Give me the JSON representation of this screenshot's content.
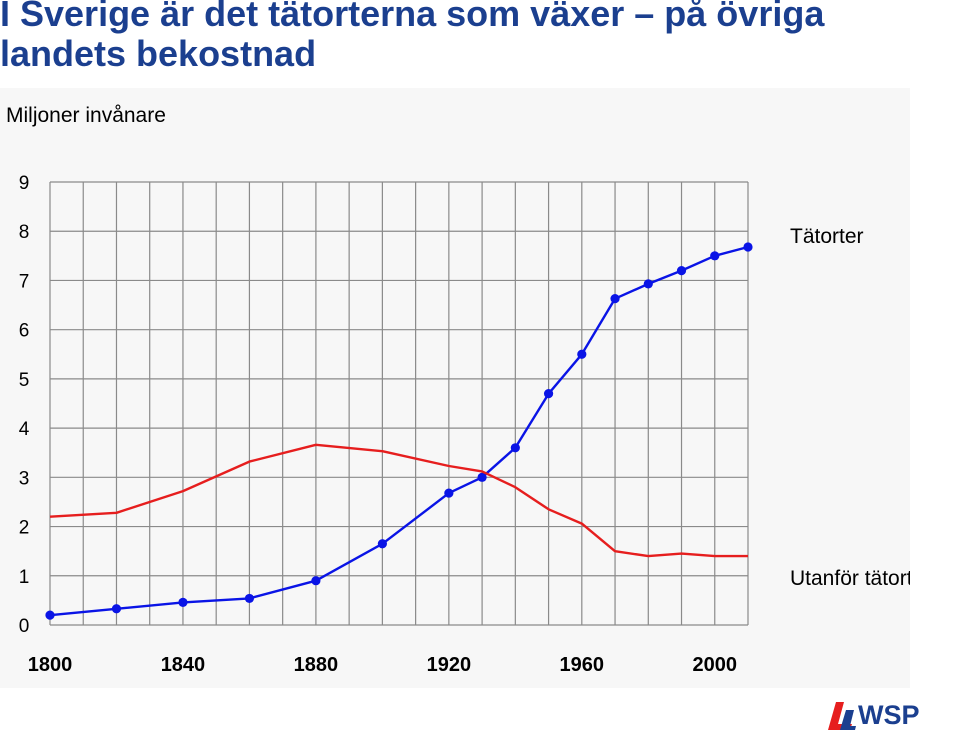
{
  "title": "I Sverige är det tätorterna som växer – på övriga landets bekostnad",
  "chart_data": {
    "type": "line",
    "ylabel": "Miljoner invånare",
    "xlabel": "",
    "xlim": [
      1800,
      2010
    ],
    "ylim": [
      0,
      9
    ],
    "x_ticks": [
      1800,
      1840,
      1880,
      1920,
      1960,
      2000
    ],
    "y_ticks": [
      0,
      1,
      2,
      3,
      4,
      5,
      6,
      7,
      8,
      9
    ],
    "grid": true,
    "series": [
      {
        "name": "Tätorter",
        "color": "#0a14e6",
        "markers": true,
        "points": [
          [
            1800,
            0.2
          ],
          [
            1820,
            0.33
          ],
          [
            1840,
            0.46
          ],
          [
            1860,
            0.54
          ],
          [
            1880,
            0.9
          ],
          [
            1900,
            1.65
          ],
          [
            1920,
            2.68
          ],
          [
            1930,
            3.0
          ],
          [
            1940,
            3.6
          ],
          [
            1950,
            4.7
          ],
          [
            1960,
            5.5
          ],
          [
            1970,
            6.63
          ],
          [
            1980,
            6.93
          ],
          [
            1990,
            7.2
          ],
          [
            2000,
            7.5
          ],
          [
            2010,
            7.68
          ]
        ]
      },
      {
        "name": "Utanför tätort",
        "color": "#e61e1e",
        "markers": false,
        "points": [
          [
            1800,
            2.2
          ],
          [
            1820,
            2.28
          ],
          [
            1840,
            2.72
          ],
          [
            1860,
            3.32
          ],
          [
            1880,
            3.66
          ],
          [
            1900,
            3.53
          ],
          [
            1920,
            3.23
          ],
          [
            1930,
            3.12
          ],
          [
            1940,
            2.8
          ],
          [
            1950,
            2.35
          ],
          [
            1960,
            2.06
          ],
          [
            1970,
            1.5
          ],
          [
            1980,
            1.4
          ],
          [
            1990,
            1.45
          ],
          [
            2000,
            1.4
          ],
          [
            2010,
            1.4
          ]
        ]
      }
    ]
  },
  "logo": {
    "text": "WSP",
    "color": "#1b3f8f",
    "accent": "#e61e1e"
  }
}
